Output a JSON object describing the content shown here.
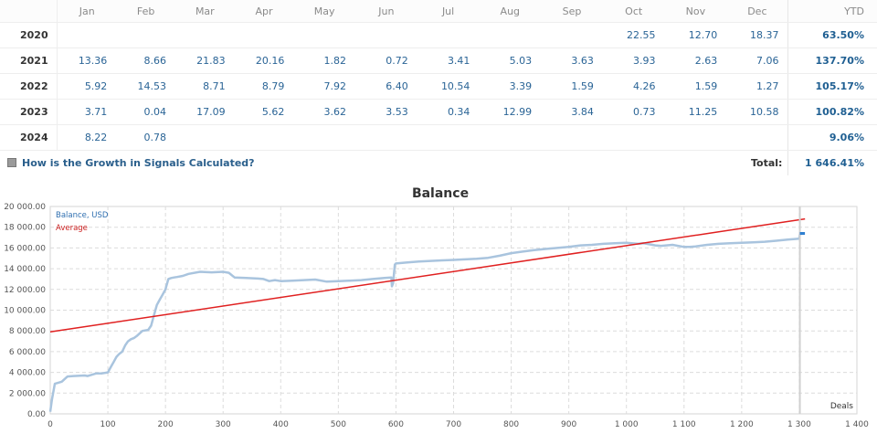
{
  "table": {
    "months": [
      "Jan",
      "Feb",
      "Mar",
      "Apr",
      "May",
      "Jun",
      "Jul",
      "Aug",
      "Sep",
      "Oct",
      "Nov",
      "Dec"
    ],
    "ytd_header": "YTD",
    "rows": [
      {
        "year": "2020",
        "values": [
          "",
          "",
          "",
          "",
          "",
          "",
          "",
          "",
          "",
          "22.55",
          "12.70",
          "18.37"
        ],
        "ytd": "63.50%"
      },
      {
        "year": "2021",
        "values": [
          "13.36",
          "8.66",
          "21.83",
          "20.16",
          "1.82",
          "0.72",
          "3.41",
          "5.03",
          "3.63",
          "3.93",
          "2.63",
          "7.06"
        ],
        "ytd": "137.70%"
      },
      {
        "year": "2022",
        "values": [
          "5.92",
          "14.53",
          "8.71",
          "8.79",
          "7.92",
          "6.40",
          "10.54",
          "3.39",
          "1.59",
          "4.26",
          "1.59",
          "1.27"
        ],
        "ytd": "105.17%"
      },
      {
        "year": "2023",
        "values": [
          "3.71",
          "0.04",
          "17.09",
          "5.62",
          "3.62",
          "3.53",
          "0.34",
          "12.99",
          "3.84",
          "0.73",
          "11.25",
          "10.58"
        ],
        "ytd": "100.82%"
      },
      {
        "year": "2024",
        "values": [
          "8.22",
          "0.78",
          "",
          "",
          "",
          "",
          "",
          "",
          "",
          "",
          "",
          ""
        ],
        "ytd": "9.06%"
      }
    ],
    "help_link": "How is the Growth in Signals Calculated?",
    "total_label": "Total:",
    "total_value": "1 646.41%"
  },
  "chart_data": {
    "type": "line",
    "title": "Balance",
    "xlabel": "Deals",
    "ylabel": "",
    "xlim": [
      0,
      1400
    ],
    "ylim": [
      0,
      20000
    ],
    "x_ticks": [
      "0",
      "100",
      "200",
      "300",
      "400",
      "500",
      "600",
      "700",
      "800",
      "900",
      "1 000",
      "1 100",
      "1 200",
      "1 300",
      "1 400"
    ],
    "y_ticks": [
      "0.00",
      "2 000.00",
      "4 000.00",
      "6 000.00",
      "8 000.00",
      "10 000.00",
      "12 000.00",
      "14 000.00",
      "16 000.00",
      "18 000.00",
      "20 000.00"
    ],
    "grid": true,
    "legend": "top-left",
    "colors": {
      "balance": "#a9c4de",
      "average": "#e02020",
      "balance_legend_text": "#2f6fb0",
      "average_legend_text": "#cc2222"
    },
    "series": [
      {
        "name": "Balance, USD",
        "x": [
          0,
          3,
          8,
          20,
          30,
          40,
          60,
          65,
          80,
          90,
          100,
          105,
          110,
          115,
          120,
          125,
          130,
          135,
          140,
          145,
          150,
          160,
          170,
          175,
          180,
          185,
          190,
          195,
          200,
          205,
          210,
          215,
          220,
          230,
          240,
          260,
          280,
          300,
          310,
          320,
          340,
          360,
          370,
          380,
          390,
          400,
          420,
          440,
          460,
          480,
          500,
          520,
          540,
          560,
          580,
          592,
          593,
          595,
          598,
          600,
          620,
          640,
          660,
          680,
          700,
          720,
          740,
          760,
          780,
          800,
          820,
          840,
          860,
          880,
          900,
          920,
          940,
          960,
          980,
          1000,
          1020,
          1030,
          1040,
          1050,
          1060,
          1080,
          1100,
          1110,
          1120,
          1140,
          1160,
          1180,
          1200,
          1220,
          1240,
          1260,
          1280,
          1300,
          1301,
          1305
        ],
        "y": [
          200,
          1400,
          2900,
          3100,
          3600,
          3650,
          3700,
          3650,
          3900,
          3900,
          4000,
          4500,
          5000,
          5500,
          5800,
          6000,
          6600,
          7000,
          7200,
          7300,
          7500,
          8000,
          8100,
          8500,
          9500,
          10500,
          11000,
          11500,
          12000,
          13000,
          13100,
          13150,
          13200,
          13300,
          13500,
          13700,
          13650,
          13700,
          13600,
          13150,
          13100,
          13050,
          13000,
          12800,
          12900,
          12800,
          12850,
          12900,
          12950,
          12750,
          12800,
          12850,
          12900,
          13000,
          13100,
          13150,
          12300,
          12600,
          14400,
          14500,
          14600,
          14700,
          14750,
          14800,
          14850,
          14900,
          14950,
          15050,
          15250,
          15500,
          15650,
          15800,
          15900,
          16000,
          16100,
          16250,
          16300,
          16400,
          16450,
          16500,
          16400,
          16450,
          16350,
          16250,
          16200,
          16300,
          16100,
          16100,
          16150,
          16300,
          16400,
          16450,
          16500,
          16550,
          16600,
          16700,
          16800,
          16900,
          17300,
          17400
        ]
      },
      {
        "name": "Average",
        "x": [
          0,
          1310
        ],
        "y": [
          7900,
          18800
        ]
      }
    ]
  }
}
